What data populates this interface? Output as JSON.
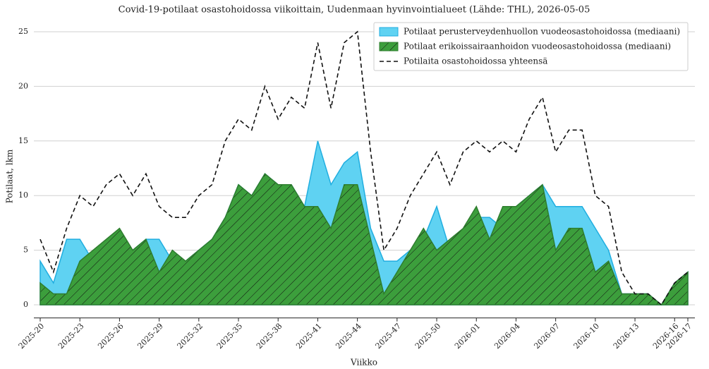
{
  "chart_data": {
    "type": "area",
    "title": "Covid-19-potilaat osastohoidossa viikoittain, Uudenmaan hyvinvointialueet (Lähde: THL), 2026-05-05",
    "xlabel": "Viikko",
    "ylabel": "Potilaat, lkm",
    "categories": [
      "2025-20",
      null,
      null,
      "2025-23",
      null,
      null,
      "2025-26",
      null,
      null,
      "2025-29",
      null,
      null,
      "2025-32",
      null,
      null,
      "2025-35",
      null,
      null,
      "2025-38",
      null,
      null,
      "2025-41",
      null,
      null,
      "2025-44",
      null,
      null,
      "2025-47",
      null,
      null,
      "2025-50",
      null,
      null,
      "2026-01",
      null,
      null,
      "2026-04",
      null,
      null,
      "2026-07",
      null,
      null,
      "2026-10",
      null,
      null,
      "2026-13",
      null,
      null,
      "2026-16",
      "2026-17"
    ],
    "series": [
      {
        "name": "Potilaat perusterveydenhuollon vuodeosastohoidossa (mediaani)",
        "kind": "area",
        "color": "#5fd2f2",
        "values": [
          4,
          2,
          6,
          6,
          4,
          5,
          6,
          5,
          6,
          6,
          4,
          4,
          5,
          6,
          8,
          11,
          10,
          12,
          11,
          11,
          9,
          15,
          11,
          13,
          14,
          7,
          4,
          4,
          5,
          6,
          9,
          5,
          6,
          8,
          8,
          7,
          9,
          10,
          11,
          9,
          9,
          9,
          7,
          5,
          1,
          1,
          1,
          0,
          2,
          3
        ]
      },
      {
        "name": "Potilaat erikoissairaanhoidon vuodeosastohoidossa (mediaani)",
        "kind": "hatched-area",
        "color": "#3c9e3c",
        "values": [
          2,
          1,
          1,
          4,
          5,
          6,
          7,
          5,
          6,
          3,
          5,
          4,
          5,
          6,
          8,
          11,
          10,
          12,
          11,
          11,
          9,
          9,
          7,
          11,
          11,
          6,
          1,
          3,
          5,
          7,
          5,
          6,
          7,
          9,
          6,
          9,
          9,
          10,
          11,
          5,
          7,
          7,
          3,
          4,
          1,
          1,
          1,
          0,
          2,
          3
        ]
      },
      {
        "name": "Potilaita osastohoidossa yhteensä",
        "kind": "dashed-line",
        "color": "#111111",
        "values": [
          6,
          3,
          7,
          10,
          9,
          11,
          12,
          10,
          12,
          9,
          8,
          8,
          10,
          11,
          15,
          17,
          16,
          20,
          17,
          19,
          18,
          24,
          18,
          24,
          25,
          14,
          5,
          7,
          10,
          12,
          14,
          11,
          14,
          15,
          14,
          15,
          14,
          17,
          19,
          14,
          16,
          16,
          10,
          9,
          3,
          1,
          1,
          0,
          2,
          3
        ]
      }
    ],
    "ylim": [
      -1.2,
      26
    ],
    "yticks": [
      0,
      5,
      10,
      15,
      20,
      25
    ],
    "grid": true,
    "legend": "upper right"
  }
}
